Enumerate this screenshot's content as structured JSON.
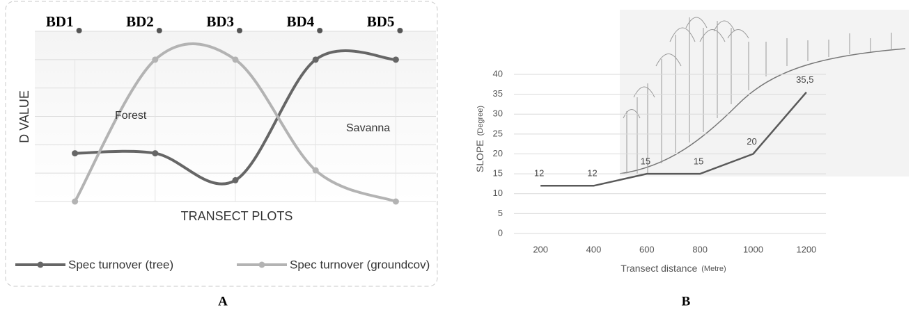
{
  "chart_data": [
    {
      "type": "line",
      "panel": "A",
      "categories": [
        "BD1",
        "BD2",
        "BD3",
        "BD4",
        "BD5"
      ],
      "series": [
        {
          "name": "Spec turnover (tree)",
          "color": "#666666",
          "values": [
            1.7,
            1.7,
            0.75,
            5.0,
            5.0
          ]
        },
        {
          "name": "Spec turnover (groundcov)",
          "color": "#b3b3b3",
          "values": [
            0,
            5.0,
            5.0,
            1.1,
            0
          ]
        }
      ],
      "ylim": [
        0,
        6
      ],
      "yticks": [
        0,
        1,
        2,
        3,
        4,
        5,
        6
      ],
      "grid": true,
      "smooth": true,
      "xlabel": "TRANSECT PLOTS",
      "ylabel": "D VALUE",
      "annotations": [
        "Forest",
        "Savanna"
      ],
      "legend": "bottom"
    },
    {
      "type": "line",
      "panel": "B",
      "x": [
        200,
        400,
        600,
        800,
        1000,
        1200
      ],
      "values": [
        12,
        12,
        15,
        15,
        20,
        35.5
      ],
      "value_labels": [
        "12",
        "12",
        "15",
        "15",
        "20",
        "35,5"
      ],
      "color": "#595959",
      "xlim": [
        100,
        1300
      ],
      "ylim": [
        0,
        40
      ],
      "xticks": [
        200,
        400,
        600,
        800,
        1000,
        1200
      ],
      "yticks": [
        0,
        5,
        10,
        15,
        20,
        25,
        30,
        35,
        40
      ],
      "grid": true,
      "xlabel": "Transect distance",
      "xlabel_unit": "(Metre)",
      "ylabel": "SLOPE",
      "ylabel_unit": "(Degree)"
    }
  ]
}
